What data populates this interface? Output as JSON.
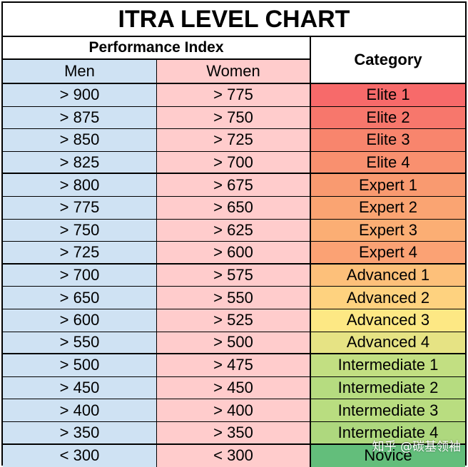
{
  "title": "ITRA LEVEL CHART",
  "headers": {
    "performance_index": "Performance Index",
    "category": "Category",
    "men": "Men",
    "women": "Women"
  },
  "rows": [
    {
      "men": "> 900",
      "women": "> 775",
      "category": "Elite 1",
      "color": "#f76a6a"
    },
    {
      "men": "> 875",
      "women": "> 750",
      "category": "Elite 2",
      "color": "#f7776c"
    },
    {
      "men": "> 850",
      "women": "> 725",
      "category": "Elite 3",
      "color": "#f8856d"
    },
    {
      "men": "> 825",
      "women": "> 700",
      "category": "Elite 4",
      "color": "#f9906f"
    },
    {
      "men": "> 800",
      "women": "> 675",
      "category": "Expert 1",
      "color": "#f99a70"
    },
    {
      "men": "> 775",
      "women": "> 650",
      "category": "Expert 2",
      "color": "#faa472"
    },
    {
      "men": "> 750",
      "women": "> 625",
      "category": "Expert 3",
      "color": "#fbae74"
    },
    {
      "men": "> 725",
      "women": "> 600",
      "category": "Expert 4",
      "color": "#fba274"
    },
    {
      "men": "> 700",
      "women": "> 575",
      "category": "Advanced 1",
      "color": "#fdc07a"
    },
    {
      "men": "> 650",
      "women": "> 550",
      "category": "Advanced 2",
      "color": "#fed27f"
    },
    {
      "men": "> 600",
      "women": "> 525",
      "category": "Advanced 3",
      "color": "#fde884"
    },
    {
      "men": "> 550",
      "women": "> 500",
      "category": "Advanced 4",
      "color": "#e6e384"
    },
    {
      "men": "> 500",
      "women": "> 475",
      "category": "Intermediate 1",
      "color": "#c2df82"
    },
    {
      "men": "> 450",
      "women": "> 450",
      "category": "Intermediate 2",
      "color": "#b6dc80"
    },
    {
      "men": "> 400",
      "women": "> 400",
      "category": "Intermediate 3",
      "color": "#b9dd80"
    },
    {
      "men": "> 350",
      "women": "> 350",
      "category": "Intermediate 4",
      "color": "#aed87e"
    },
    {
      "men": "< 300",
      "women": "< 300",
      "category": "Novice",
      "color": "#63be7b"
    }
  ],
  "watermark": "知乎 @碳基领袖"
}
